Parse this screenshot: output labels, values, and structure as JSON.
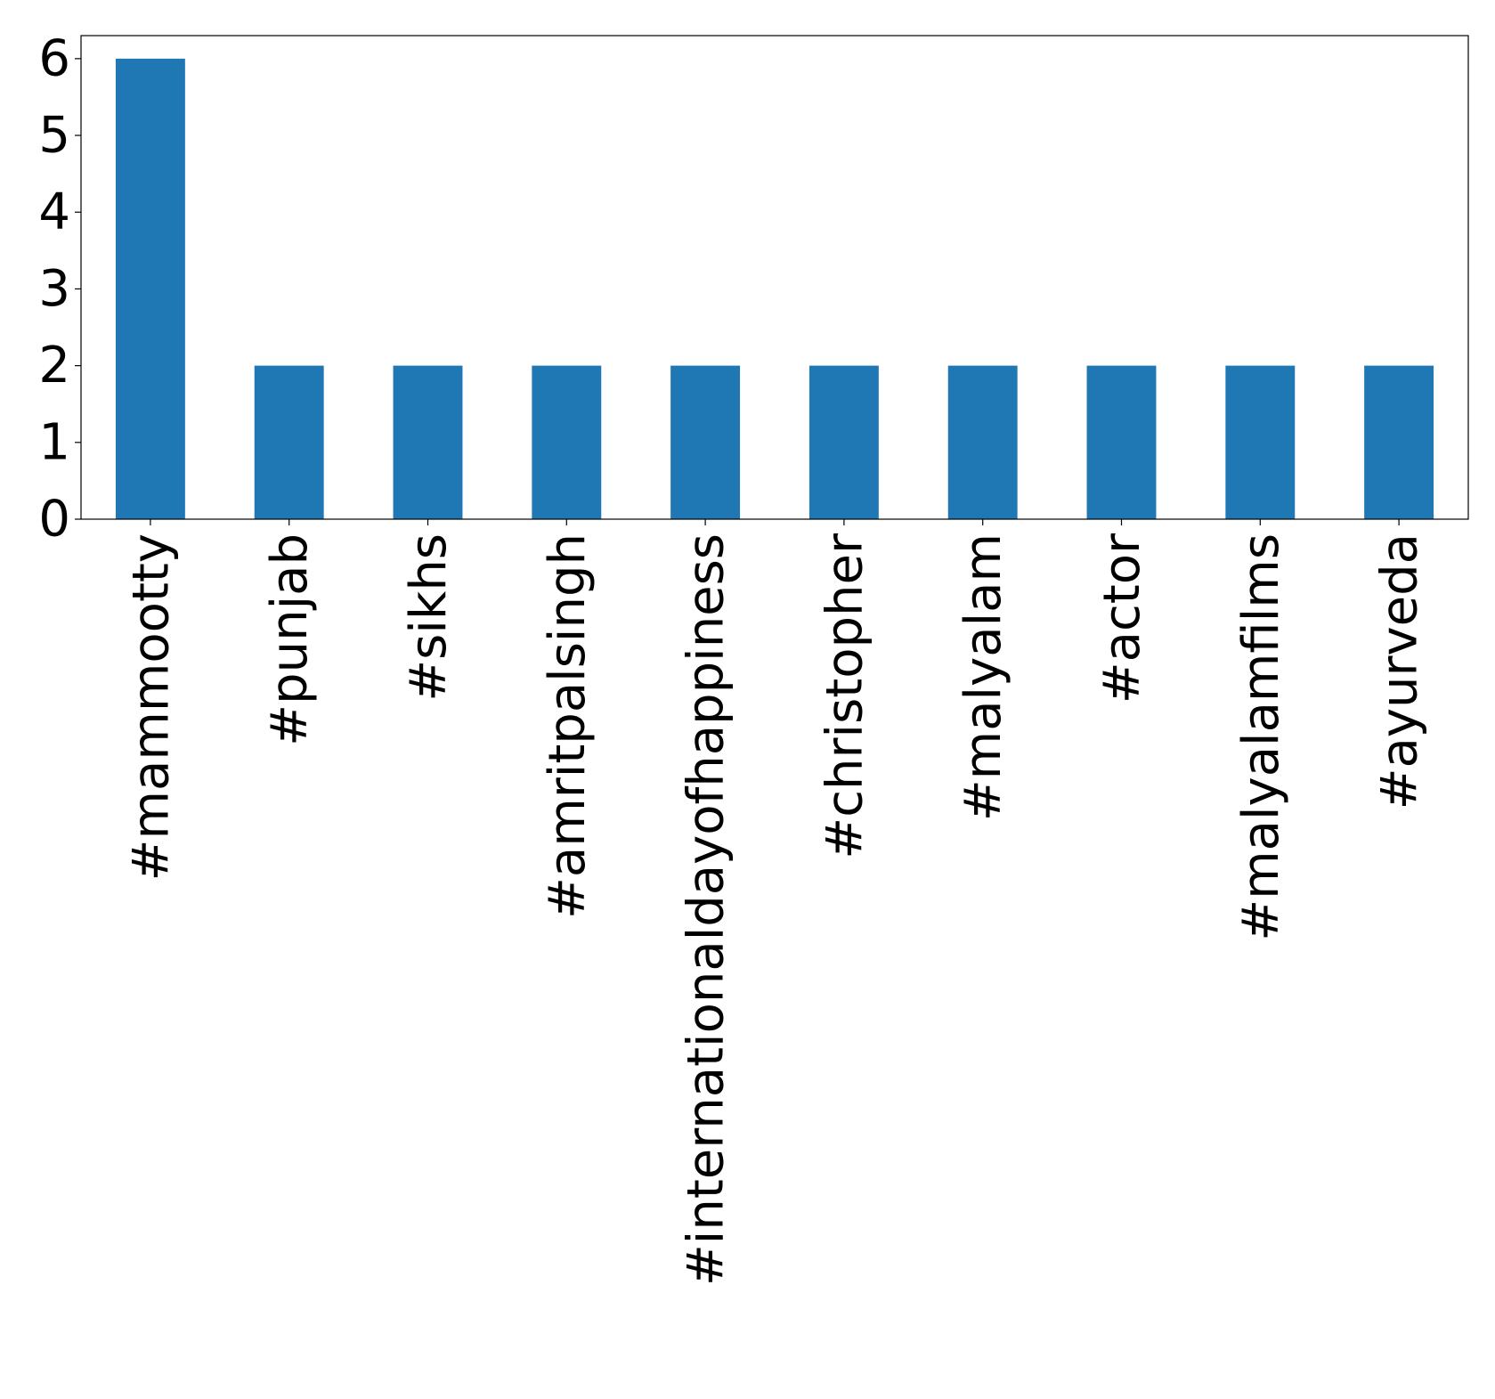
{
  "chart_data": {
    "type": "bar",
    "categories": [
      "#mammootty",
      "#punjab",
      "#sikhs",
      "#amritpalsingh",
      "#internationaldayofhappiness",
      "#christopher",
      "#malyalam",
      "#actor",
      "#malyalamfilms",
      "#ayurveda"
    ],
    "values": [
      6,
      2,
      2,
      2,
      2,
      2,
      2,
      2,
      2,
      2
    ],
    "ylim": [
      0,
      6.3
    ],
    "yticks": [
      "0",
      "1",
      "2",
      "3",
      "4",
      "5",
      "6"
    ],
    "title": "",
    "xlabel": "",
    "ylabel": "",
    "grid": false,
    "legend": false,
    "colors": {
      "bar": "#1f77b4",
      "axes": "#000000",
      "text": "#000000",
      "background": "#ffffff"
    }
  }
}
